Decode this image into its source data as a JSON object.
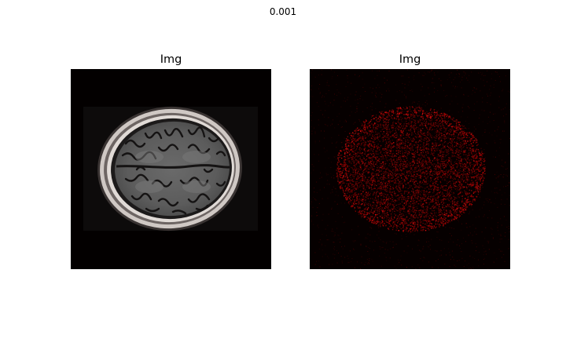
{
  "figure": {
    "suptitle": "0.001"
  },
  "panels": [
    {
      "title": "Img",
      "content": "brain-mri-axial-slice"
    },
    {
      "title": "Img",
      "content": "red-noise-residual-map"
    }
  ],
  "colors": {
    "background": "#ffffff",
    "image_background": "#040000",
    "residual_red": "#c00000"
  }
}
